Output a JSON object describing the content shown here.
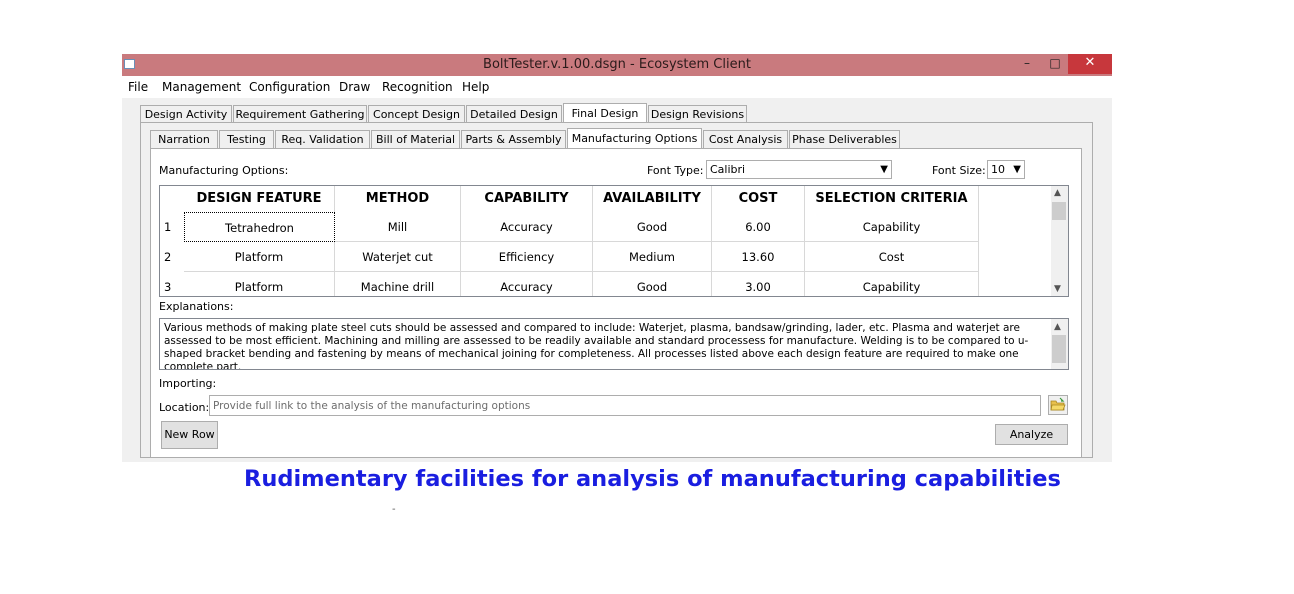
{
  "window": {
    "title": "BoltTester.v.1.00.dsgn - Ecosystem Client",
    "minimize_glyph": "–",
    "maximize_glyph": "□",
    "close_glyph": "✕"
  },
  "menu": [
    "File",
    "Management",
    "Configuration",
    "Draw",
    "Recognition",
    "Help"
  ],
  "main_tabs": [
    "Design Activity",
    "Requirement Gathering",
    "Concept Design",
    "Detailed Design",
    "Final Design",
    "Design Revisions"
  ],
  "main_tabs_active": "Final Design",
  "sub_tabs": [
    "Narration",
    "Testing",
    "Req. Validation",
    "Bill of Material",
    "Parts & Assembly",
    "Manufacturing Options",
    "Cost Analysis",
    "Phase Deliverables"
  ],
  "sub_tabs_active": "Manufacturing Options",
  "manufacturing": {
    "label": "Manufacturing Options:",
    "font_type_label": "Font Type:",
    "font_type_value": "Calibri",
    "font_size_label": "Font Size:",
    "font_size_value": "10"
  },
  "table": {
    "headers": [
      "DESIGN FEATURE",
      "METHOD",
      "CAPABILITY",
      "AVAILABILITY",
      "COST",
      "SELECTION CRITERIA"
    ],
    "rows": [
      {
        "num": "1",
        "cells": [
          "Tetrahedron",
          "Mill",
          "Accuracy",
          "Good",
          "6.00",
          "Capability"
        ]
      },
      {
        "num": "2",
        "cells": [
          "Platform",
          "Waterjet cut",
          "Efficiency",
          "Medium",
          "13.60",
          "Cost"
        ]
      },
      {
        "num": "3",
        "cells": [
          "Platform",
          "Machine drill",
          "Accuracy",
          "Good",
          "3.00",
          "Capability"
        ]
      }
    ]
  },
  "explanations": {
    "label": "Explanations:",
    "text": "Various methods of making plate steel cuts should be assessed and compared to include: Waterjet, plasma, bandsaw/grinding, lader, etc. Plasma and waterjet are assessed to be most efficient. Machining and milling are assessed to be readily available and standard processess for manufacture. Welding is to be compared to u-shaped bracket bending and fastening by means of mechanical joining for completeness. All processes listed above each design feature are required to make one complete part."
  },
  "importing": {
    "label": "Importing:",
    "location_label": "Location:",
    "location_placeholder": "Provide full link to the analysis of the manufacturing options",
    "location_value": ""
  },
  "buttons": {
    "new_row": "New Row",
    "analyze": "Analyze"
  },
  "caption": "Rudimentary facilities for analysis of manufacturing capabilities",
  "colors": {
    "titlebar": "#c97a7e",
    "close_button": "#c7373c",
    "caption_text": "#1a1ee0"
  }
}
